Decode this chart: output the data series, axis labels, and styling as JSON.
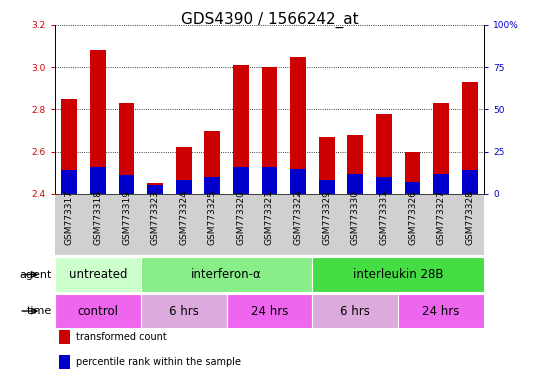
{
  "title": "GDS4390 / 1566242_at",
  "samples": [
    "GSM773317",
    "GSM773318",
    "GSM773319",
    "GSM773323",
    "GSM773324",
    "GSM773325",
    "GSM773320",
    "GSM773321",
    "GSM773322",
    "GSM773329",
    "GSM773330",
    "GSM773331",
    "GSM773326",
    "GSM773327",
    "GSM773328"
  ],
  "red_values": [
    2.85,
    3.08,
    2.83,
    2.45,
    2.62,
    2.7,
    3.01,
    3.0,
    3.05,
    2.67,
    2.68,
    2.78,
    2.6,
    2.83,
    2.93
  ],
  "percentile_values": [
    14,
    16,
    11,
    5,
    8,
    10,
    16,
    16,
    15,
    8,
    12,
    10,
    7,
    12,
    14
  ],
  "ylim_left": [
    2.4,
    3.2
  ],
  "ylim_right": [
    0,
    100
  ],
  "yticks_left": [
    2.4,
    2.6,
    2.8,
    3.0,
    3.2
  ],
  "yticks_right": [
    0,
    25,
    50,
    75,
    100
  ],
  "bar_bottom": 2.4,
  "red_color": "#cc0000",
  "blue_color": "#0000cc",
  "agent_groups": [
    {
      "label": "untreated",
      "start": 0,
      "end": 3,
      "color": "#ccffcc"
    },
    {
      "label": "interferon-α",
      "start": 3,
      "end": 9,
      "color": "#88ee88"
    },
    {
      "label": "interleukin 28B",
      "start": 9,
      "end": 15,
      "color": "#44dd44"
    }
  ],
  "time_groups": [
    {
      "label": "control",
      "start": 0,
      "end": 3,
      "color": "#ee66ee"
    },
    {
      "label": "6 hrs",
      "start": 3,
      "end": 6,
      "color": "#ddaadd"
    },
    {
      "label": "24 hrs",
      "start": 6,
      "end": 9,
      "color": "#ee66ee"
    },
    {
      "label": "6 hrs",
      "start": 9,
      "end": 12,
      "color": "#ddaadd"
    },
    {
      "label": "24 hrs",
      "start": 12,
      "end": 15,
      "color": "#ee66ee"
    }
  ],
  "legend_items": [
    {
      "label": "transformed count",
      "color": "#cc0000"
    },
    {
      "label": "percentile rank within the sample",
      "color": "#0000cc"
    }
  ],
  "title_fontsize": 11,
  "tick_fontsize": 6.5,
  "label_fontsize": 8,
  "row_fontsize": 8.5,
  "bar_width": 0.55,
  "xtick_bg_color": "#d0d0d0",
  "border_color": "#888888"
}
